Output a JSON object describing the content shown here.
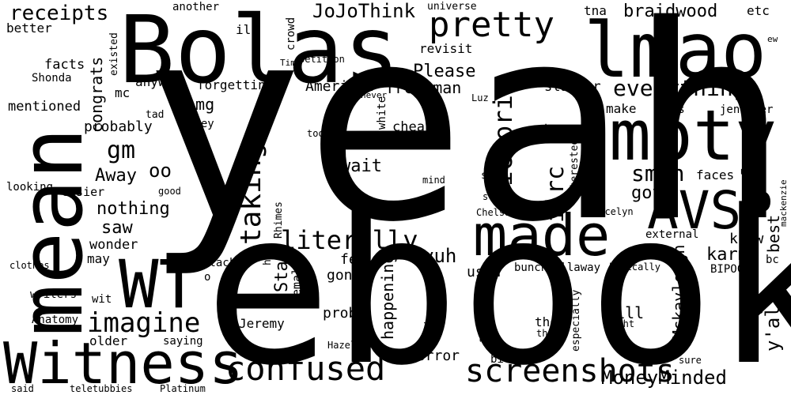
{
  "colors": {
    "background": "#ffffff",
    "text": "#000000"
  },
  "words": [
    "yeah",
    "ebook",
    "mean",
    "Bolas",
    "lmao",
    "moty",
    "made",
    "Witness",
    "WT",
    "AVSP",
    "pretty",
    "confused",
    "screenshots",
    "imagine",
    "literally",
    "victoria",
    "everything",
    "taking",
    "receipts",
    "smth",
    "MoneyMinded",
    "JoJoThink",
    "iirc",
    "braidwood",
    "karma",
    "nothing",
    "gm",
    "y'all",
    "Please",
    "Stay",
    "freshman",
    "American",
    "congrats",
    "Mckayleigh",
    "best",
    "yuh",
    "Away",
    "wait",
    "got",
    "oo",
    "saw",
    "know",
    "prob",
    "happening",
    "horror",
    "used",
    "Will",
    "thot",
    "gonna",
    "feel",
    "omg",
    "probably",
    "forgetting",
    "anyway",
    "revisit",
    "crowd",
    "ilb",
    "another",
    "universe",
    "tna",
    "etc",
    "better",
    "facts",
    "Shonda",
    "existed",
    "petition",
    "Time",
    "ew",
    "mentioned",
    "mc",
    "tad",
    "Grey",
    "never",
    "Luz",
    "slasher",
    "make",
    "offs",
    "jennifer",
    "te",
    "cheaper",
    "took",
    "white",
    "interested",
    "mackenzie",
    "mind",
    "spin",
    "stop",
    "looking",
    "easier",
    "good",
    "Rhimes",
    "want",
    "faces",
    "Jocelyn",
    "Chelsa",
    "external",
    "wonder",
    "may",
    "hss",
    "female",
    "Jeremy",
    "Black",
    "clothes",
    "writers",
    "wit",
    "o",
    "Anatomy",
    "older",
    "saying",
    "bunch",
    "allaway",
    "basically",
    "BIPOC",
    "bc",
    "much",
    "thinking",
    "according",
    "especially",
    "thunk",
    "Right",
    "PB",
    "Hazel",
    "bit",
    "sure",
    "said",
    "teletubbies",
    "Platinum"
  ]
}
